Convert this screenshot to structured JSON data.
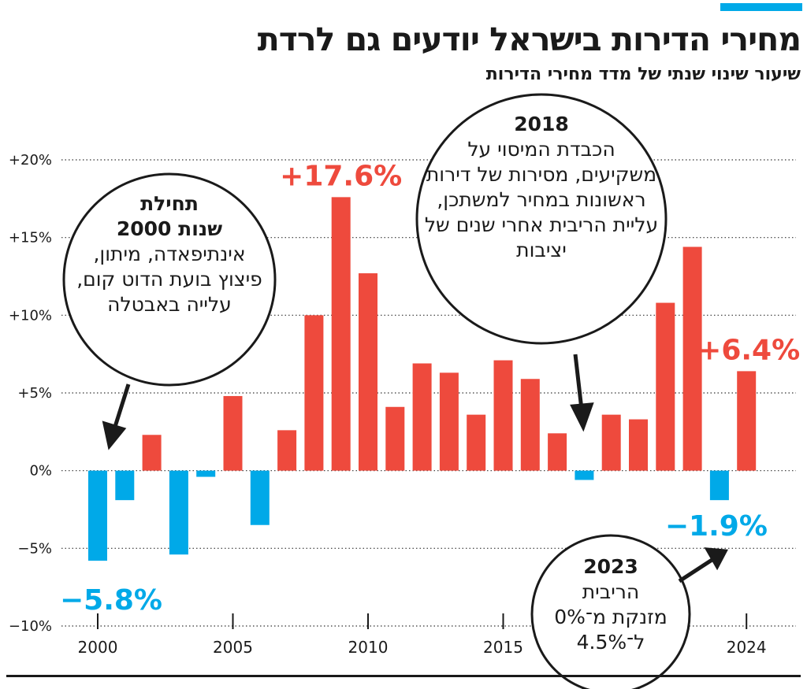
{
  "title": "מחירי הדירות בישראל יודעים גם לרדת",
  "subtitle": "שיעור שינוי שנתי של מדד מחירי הדירות",
  "colors": {
    "positive": "#ee4a3d",
    "negative": "#00a9e8",
    "accent": "#00a9e8",
    "text": "#1a1a1a"
  },
  "chart_data": {
    "type": "bar",
    "title": "מחירי הדירות בישראל יודעים גם לרדת",
    "subtitle": "שיעור שינוי שנתי של מדד מחירי הדירות",
    "categories": [
      2000,
      2001,
      2002,
      2003,
      2004,
      2005,
      2006,
      2007,
      2008,
      2009,
      2010,
      2011,
      2012,
      2013,
      2014,
      2015,
      2016,
      2017,
      2018,
      2019,
      2020,
      2021,
      2022,
      2023,
      2024
    ],
    "values": [
      -5.8,
      -1.9,
      2.3,
      -5.4,
      -0.4,
      4.8,
      -3.5,
      2.6,
      10.0,
      17.6,
      12.7,
      4.1,
      6.9,
      6.3,
      3.6,
      7.1,
      5.9,
      2.4,
      -0.6,
      3.6,
      3.3,
      10.8,
      14.4,
      -1.9,
      6.4
    ],
    "ylim": [
      -10,
      20
    ],
    "yticks": [
      -10,
      -5,
      0,
      5,
      10,
      15,
      20
    ],
    "ytick_labels": [
      "−10%",
      "−5%",
      "0%",
      "+5%",
      "+10%",
      "+15%",
      "+20%"
    ],
    "xticks": [
      2000,
      2005,
      2010,
      2015,
      2024
    ],
    "xtick_labels": [
      "2000",
      "2005",
      "2010",
      "2015",
      "2024"
    ],
    "grid": "horizontal-dotted",
    "xlabel": "",
    "ylabel": "",
    "data_labels": [
      {
        "year": 2000,
        "text": "−5.8%",
        "color": "negative"
      },
      {
        "year": 2009,
        "text": "+17.6%",
        "color": "positive"
      },
      {
        "year": 2024,
        "text": "+6.4%",
        "color": "positive"
      },
      {
        "year": 2023,
        "text": "−1.9%",
        "color": "negative"
      }
    ]
  },
  "annotations": {
    "a2000": {
      "year": "תחילת",
      "line1": "שנות 2000",
      "body": "אינתיפאדה, מיתון, פיצוץ בועת הדוט קום, עלייה באבטלה"
    },
    "a2018": {
      "year": "2018",
      "body": "הכבדת המיסוי על משקיעים, מסירות של דירות ראשונות במחיר למשתכן, עליית הריבית אחרי שנים של יציבות"
    },
    "a2023": {
      "year": "2023",
      "line1": "הריבית",
      "line2": "מזנקת מ־0%",
      "line3": "ל־4.5%"
    }
  }
}
